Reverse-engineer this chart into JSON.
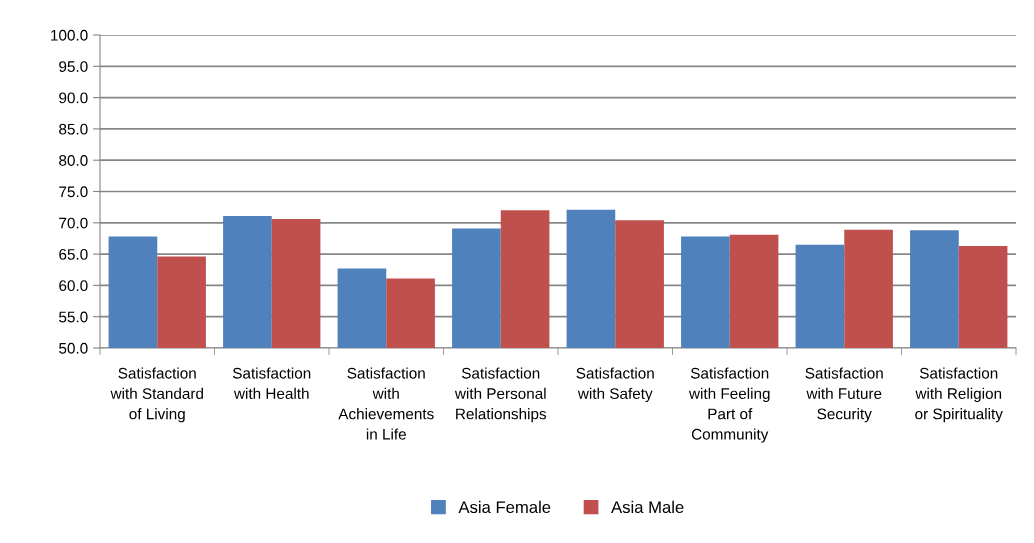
{
  "chart_data": {
    "type": "bar",
    "categories": [
      "Satisfaction\nwith Standard\nof Living",
      "Satisfaction\nwith Health",
      "Satisfaction\nwith\nAchievements\nin Life",
      "Satisfaction\nwith Personal\nRelationships",
      "Satisfaction\nwith Safety",
      "Satisfaction\nwith Feeling\nPart of\nCommunity",
      "Satisfaction\nwith Future\nSecurity",
      "Satisfaction\nwith Religion\nor Spirituality"
    ],
    "series": [
      {
        "name": "Asia Female",
        "color": "#4f81bd",
        "values": [
          67.8,
          71.1,
          62.7,
          69.1,
          72.1,
          67.8,
          66.5,
          68.8
        ]
      },
      {
        "name": "Asia Male",
        "color": "#c0504d",
        "values": [
          64.6,
          70.6,
          61.1,
          72.0,
          70.4,
          68.1,
          68.9,
          66.3
        ]
      }
    ],
    "ylim": [
      50,
      100
    ],
    "yticks": [
      {
        "value": 50,
        "label": "50.0"
      },
      {
        "value": 55,
        "label": "55.0"
      },
      {
        "value": 60,
        "label": "60.0"
      },
      {
        "value": 65,
        "label": "65.0"
      },
      {
        "value": 70,
        "label": "70.0"
      },
      {
        "value": 75,
        "label": "75.0"
      },
      {
        "value": 80,
        "label": "80.0"
      },
      {
        "value": 85,
        "label": "85.0"
      },
      {
        "value": 90,
        "label": "90.0"
      },
      {
        "value": 95,
        "label": "95.0"
      },
      {
        "value": 100,
        "label": "100.0"
      }
    ],
    "grid": "y",
    "legend": "bottom"
  }
}
